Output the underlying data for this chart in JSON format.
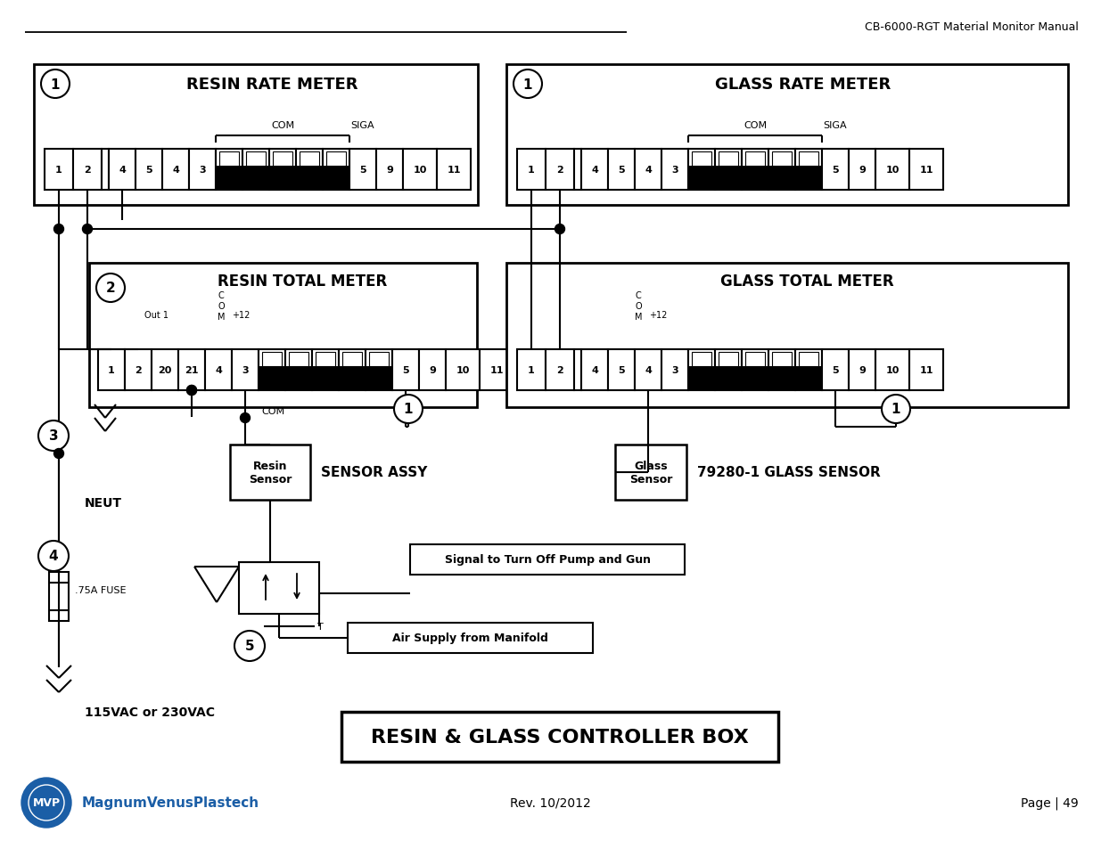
{
  "title": "RESIN & GLASS CONTROLLER BOX",
  "header_text": "CB-6000-RGT Material Monitor Manual",
  "footer_left": "MagnumVenusPlastech",
  "footer_center": "Rev. 10/2012",
  "footer_right": "Page | 49",
  "resin_rate_title": "RESIN RATE METER",
  "glass_rate_title": "GLASS RATE METER",
  "resin_total_title": "RESIN TOTAL METER",
  "glass_total_title": "GLASS TOTAL METER",
  "sensor_assy_label": "SENSOR ASSY",
  "resin_sensor_label": "Resin\nSensor",
  "glass_sensor_label": "Glass\nSensor",
  "glass_sensor_model": "79280-1 GLASS SENSOR",
  "signal_label": "Signal to Turn Off Pump and Gun",
  "air_supply_label": "Air Supply from Manifold",
  "neut_label": "NEUT",
  "fuse_label": ".75A FUSE",
  "voltage_label": "115VAC or 230VAC",
  "bg_color": "#ffffff"
}
